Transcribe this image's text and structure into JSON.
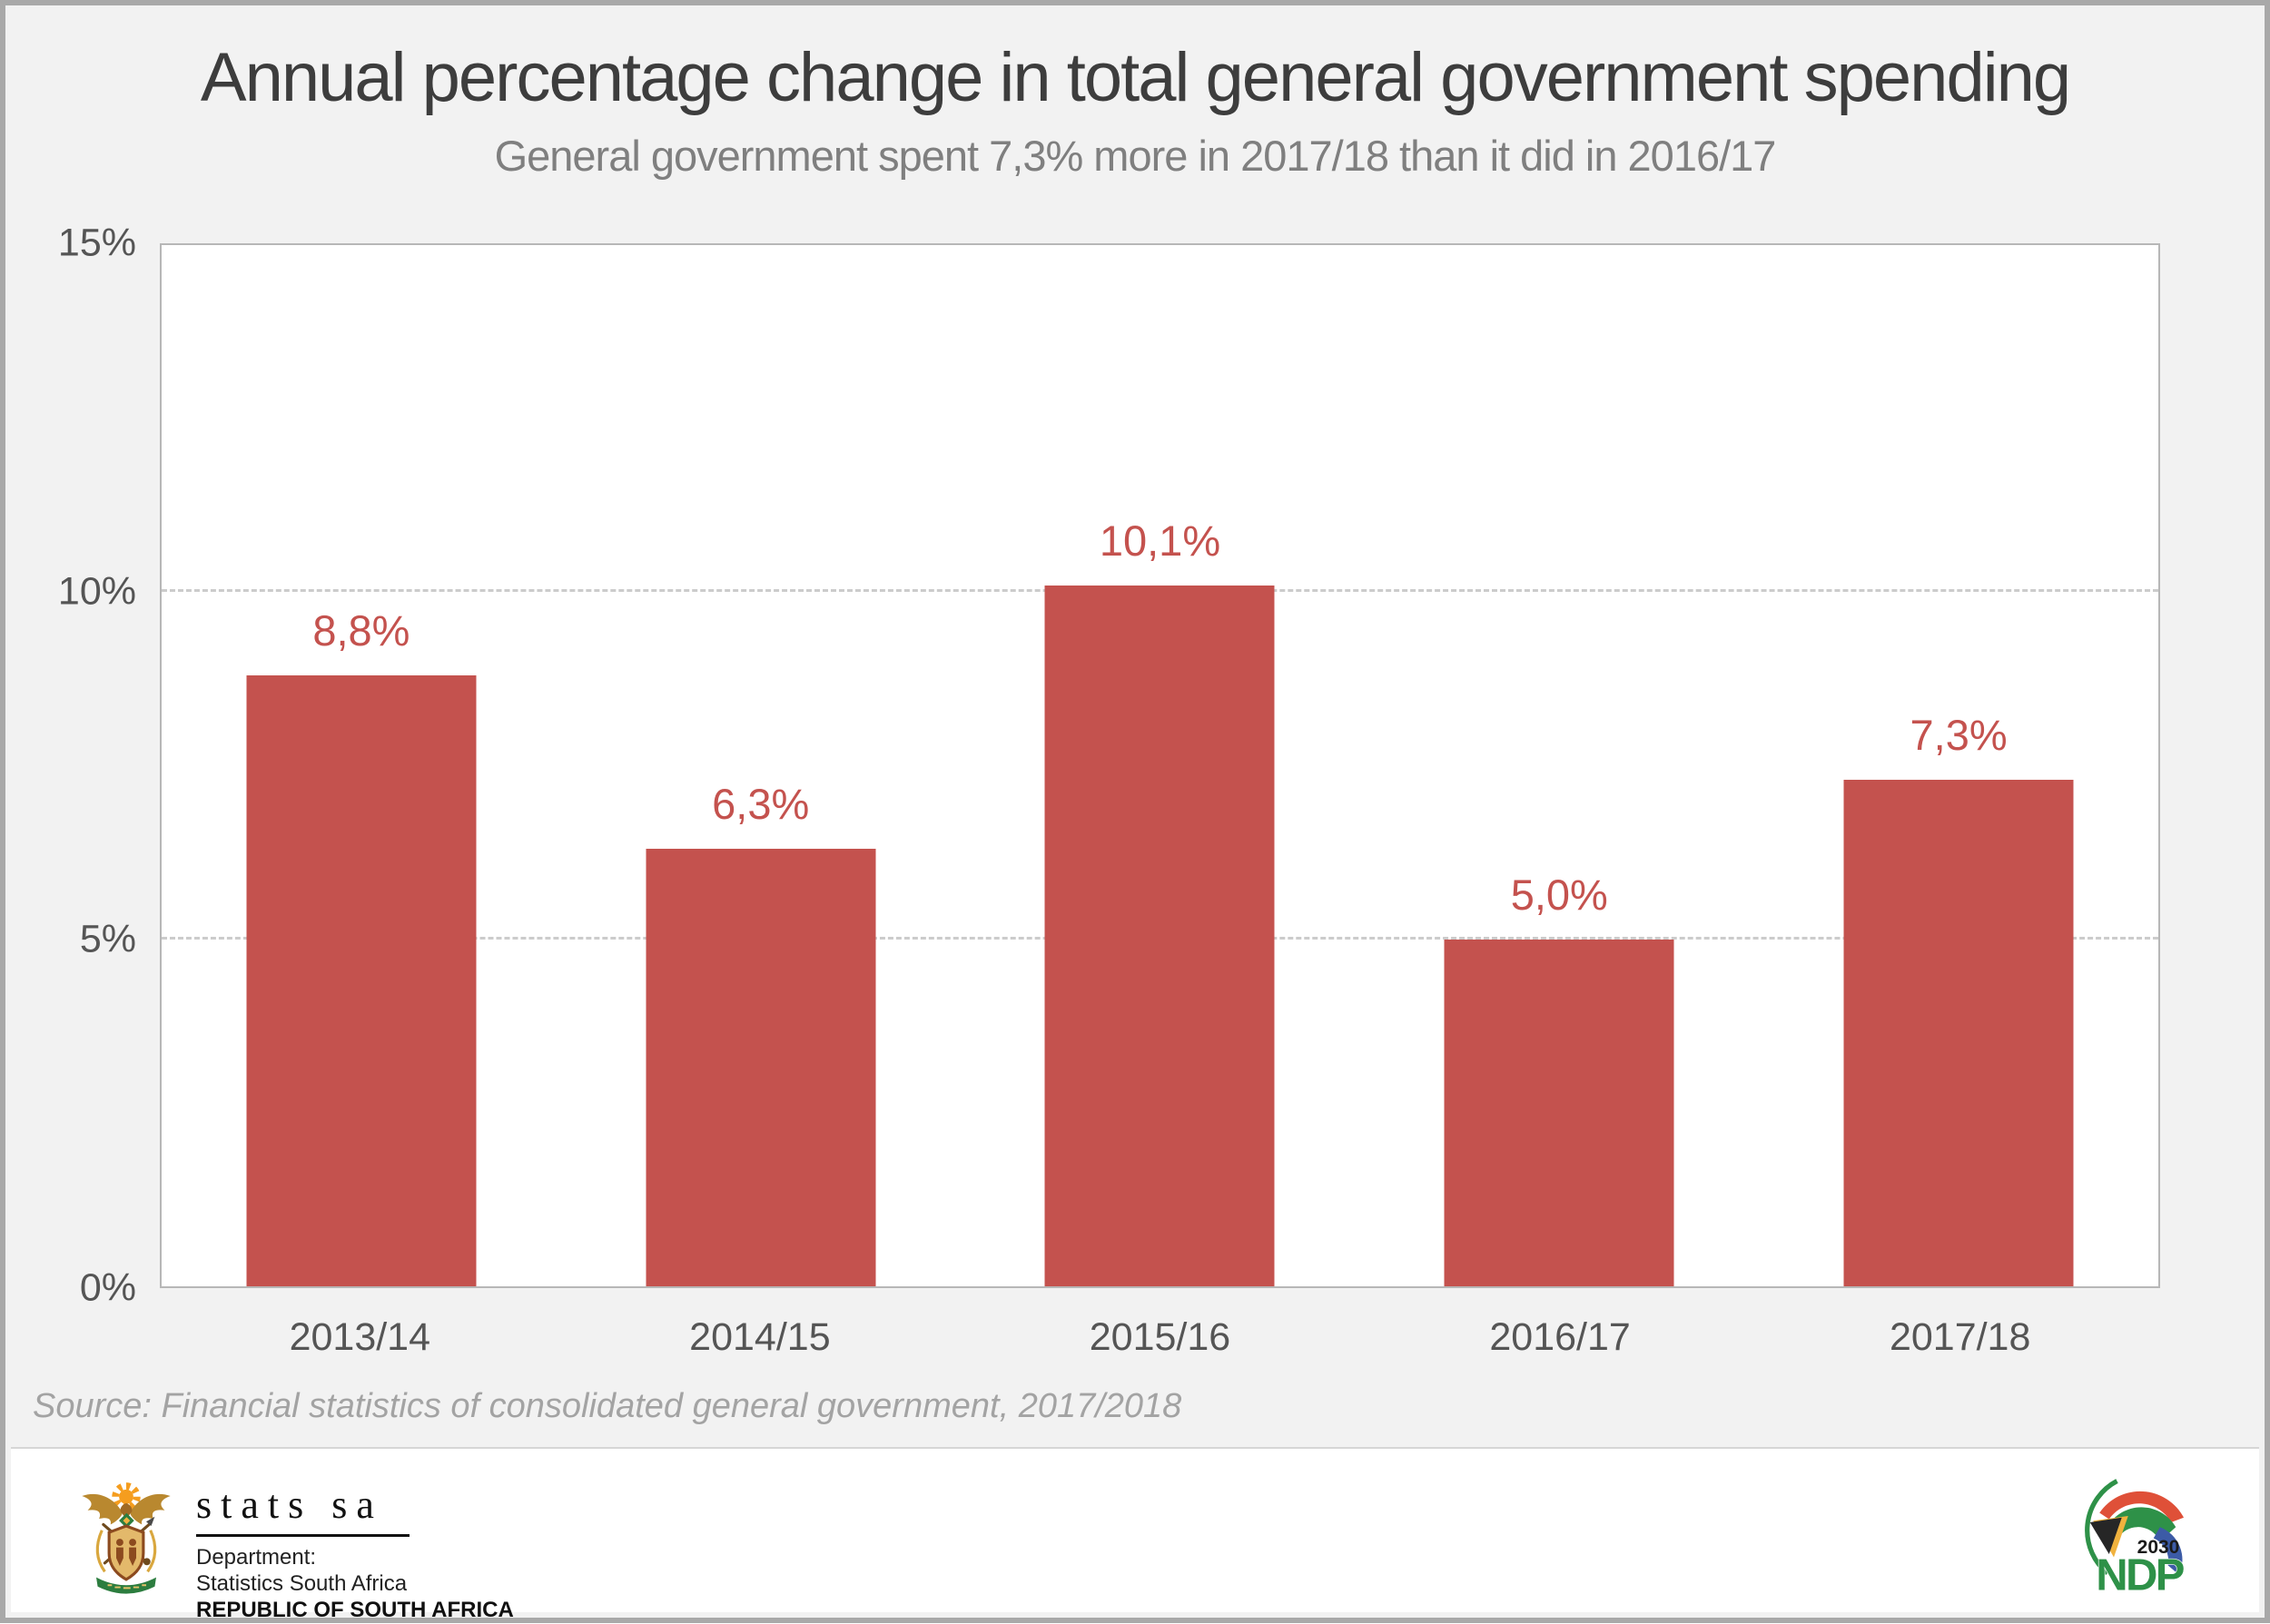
{
  "title": "Annual percentage change in total general government spending",
  "subtitle": "General government spent 7,3% more in 2017/18 than it did in 2016/17",
  "source": "Source: Financial statistics of consolidated general government, 2017/2018",
  "chart_data": {
    "type": "bar",
    "title": "Annual percentage change in total general government spending",
    "subtitle": "General government spent 7,3% more in 2017/18 than it did in 2016/17",
    "categories": [
      "2013/14",
      "2014/15",
      "2015/16",
      "2016/17",
      "2017/18"
    ],
    "values": [
      8.8,
      6.3,
      10.1,
      5.0,
      7.3
    ],
    "value_labels": [
      "8,8%",
      "6,3%",
      "10,1%",
      "5,0%",
      "7,3%"
    ],
    "ylim": [
      0,
      15
    ],
    "yticks": [
      {
        "value": 0,
        "label": "0%"
      },
      {
        "value": 5,
        "label": "5%"
      },
      {
        "value": 10,
        "label": "10%"
      },
      {
        "value": 15,
        "label": "15%"
      }
    ],
    "gridlines": [
      5,
      10
    ],
    "grid_style": "dashed horizontal",
    "legend": "none",
    "bar_color": "#c4524e",
    "label_color": "#c4524e"
  },
  "colors": {
    "bar": "#c4524e",
    "title": "#3d3d3d",
    "subtitle": "#7f7f7f",
    "axis_text": "#555555",
    "source": "#a3a3a3",
    "background": "#f2f2f2",
    "plot_background": "#ffffff",
    "gridline": "#cccccc",
    "frame": "#a9a9a9",
    "ndp_green": "#2e9148",
    "flag_red": "#df5038",
    "flag_blue": "#3c5ba6",
    "flag_black": "#262626",
    "flag_gold": "#f0b23e"
  },
  "footer": {
    "statssa": {
      "wordmark": "stats sa",
      "department": "Department:",
      "line2": "Statistics South Africa",
      "line3": "REPUBLIC OF SOUTH AFRICA"
    },
    "ndp": {
      "year": "2030",
      "name": "NDP"
    }
  }
}
